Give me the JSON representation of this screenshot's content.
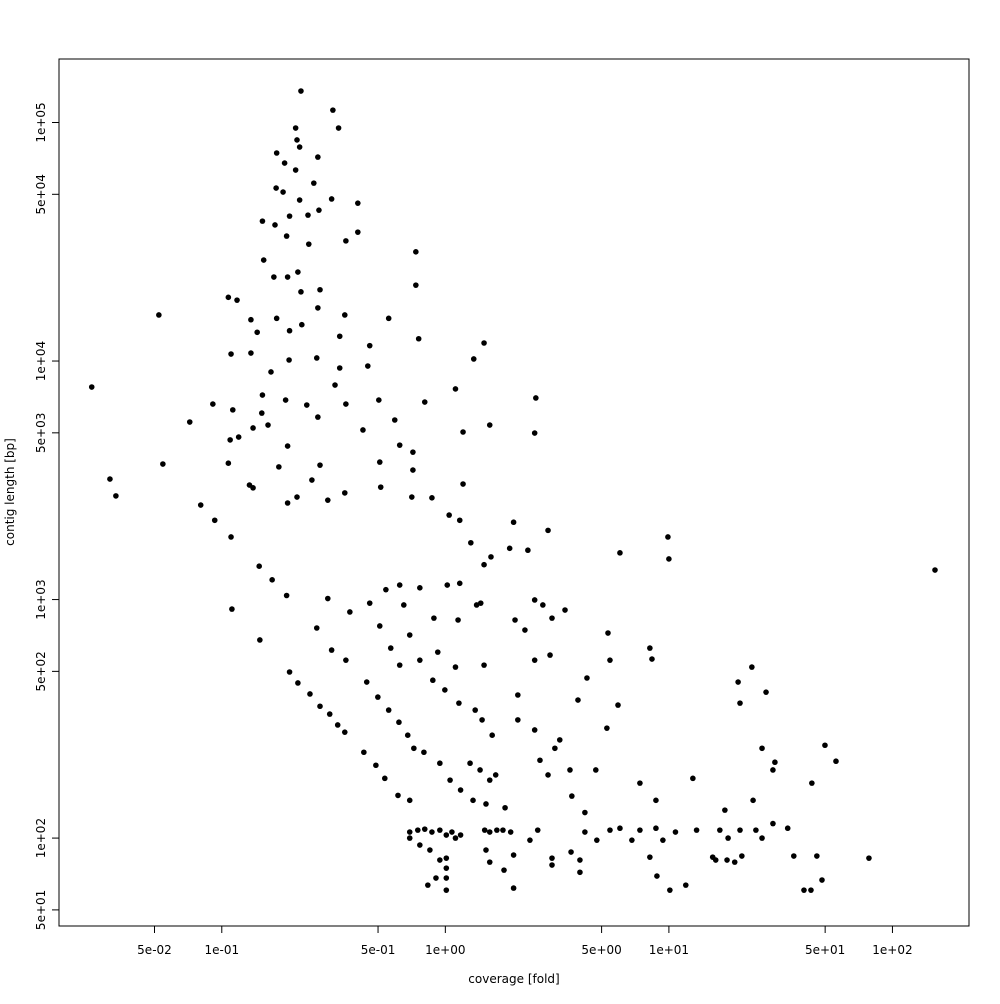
{
  "chart_data": {
    "type": "scatter",
    "xlabel": "coverage [fold]",
    "ylabel": "contig length [bp]",
    "xlog": true,
    "ylog": true,
    "color": "#000000",
    "xlim": [
      0.0187,
      220
    ],
    "ylim": [
      42.8,
      184600
    ],
    "xticks": [
      {
        "value": 0.05,
        "label": "5e-02"
      },
      {
        "value": 0.1,
        "label": "1e-01"
      },
      {
        "value": 0.5,
        "label": "5e-01"
      },
      {
        "value": 1,
        "label": "1e+00"
      },
      {
        "value": 5,
        "label": "5e+00"
      },
      {
        "value": 10,
        "label": "1e+01"
      },
      {
        "value": 50,
        "label": "5e+01"
      },
      {
        "value": 100,
        "label": "1e+02"
      }
    ],
    "yticks": [
      {
        "value": 50,
        "label": "5e+01"
      },
      {
        "value": 100,
        "label": "1e+02"
      },
      {
        "value": 500,
        "label": "5e+02"
      },
      {
        "value": 1000,
        "label": "1e+03"
      },
      {
        "value": 5000,
        "label": "5e+03"
      },
      {
        "value": 10000,
        "label": "1e+04"
      },
      {
        "value": 50000,
        "label": "5e+04"
      },
      {
        "value": 100000,
        "label": "1e+05"
      }
    ],
    "x": [
      0.226,
      0.314,
      0.333,
      0.214,
      0.217,
      0.223,
      0.176,
      0.269,
      0.191,
      0.214,
      0.258,
      0.175,
      0.188,
      0.31,
      0.223,
      0.152,
      0.201,
      0.243,
      0.173,
      0.272,
      0.406,
      0.195,
      0.245,
      0.359,
      0.406,
      0.154,
      0.219,
      0.197,
      0.171,
      0.275,
      0.226,
      0.107,
      0.117,
      0.0523,
      0.176,
      0.355,
      0.228,
      0.201,
      0.135,
      0.269,
      0.144,
      0.337,
      0.459,
      0.558,
      0.738,
      0.738,
      0.76,
      0.135,
      0.11,
      0.2,
      0.266,
      0.337,
      0.45,
      0.166,
      0.152,
      0.193,
      0.24,
      0.321,
      0.359,
      0.504,
      0.0262,
      0.0719,
      0.0912,
      0.112,
      0.151,
      0.161,
      0.197,
      0.269,
      0.809,
      1.11,
      1.34,
      1.49,
      2.54,
      2.51,
      1.2,
      1.58,
      0.428,
      0.594,
      0.625,
      0.716,
      0.109,
      0.119,
      0.138,
      0.0545,
      0.107,
      0.18,
      0.275,
      0.253,
      0.0316,
      0.0336,
      0.0805,
      0.093,
      0.11,
      0.133,
      0.138,
      0.197,
      0.217,
      0.298,
      0.355,
      0.509,
      0.716,
      0.708,
      0.514,
      0.871,
      1.04,
      1.16,
      1.2,
      1.3,
      1.49,
      1.6,
      2.02,
      1.94,
      2.34,
      2.88,
      2.51,
      3.0,
      2.73,
      3.43,
      6.04,
      9.9,
      10.0,
      155,
      0.147,
      0.168,
      0.195,
      0.298,
      0.374,
      0.459,
      0.542,
      0.625,
      0.652,
      0.769,
      1.02,
      1.16,
      1.38,
      1.44,
      1.14,
      0.889,
      0.148,
      0.111,
      0.266,
      0.31,
      0.359,
      0.509,
      0.693,
      0.57,
      0.625,
      0.925,
      1.11,
      1.49,
      2.05,
      2.27,
      2.51,
      2.94,
      5.34,
      5.45,
      8.22,
      8.4,
      4.3,
      3.92,
      5.92,
      20.4,
      23.5,
      20.8,
      27.2,
      0.201,
      0.219,
      0.248,
      0.275,
      0.304,
      0.33,
      0.355,
      0.445,
      0.499,
      0.558,
      0.62,
      0.679,
      0.723,
      0.769,
      0.879,
      0.995,
      1.15,
      1.36,
      1.46,
      1.62,
      2.11,
      2.11,
      2.51,
      2.65,
      3.09,
      3.25,
      2.88,
      3.61,
      4.71,
      5.28,
      7.42,
      8.75,
      12.8,
      26.1,
      29.8,
      29.2,
      49.9,
      55.9,
      43.6,
      23.8,
      0.432,
      0.489,
      0.536,
      0.614,
      0.693,
      0.802,
      0.945,
      1.05,
      1.17,
      1.29,
      1.43,
      1.58,
      1.68,
      1.85,
      1.33,
      1.52,
      0.693,
      0.753,
      0.809,
      0.871,
      0.945,
      1.01,
      1.07,
      0.693,
      0.769,
      0.853,
      0.945,
      1.01,
      1.01,
      1.01,
      1.01,
      0.908,
      0.835,
      1.11,
      1.17,
      1.5,
      1.58,
      1.7,
      1.81,
      1.96,
      1.52,
      1.58,
      1.83,
      2.02,
      2.02,
      2.59,
      3.0,
      3.0,
      3.65,
      4.0,
      4.0,
      4.21,
      4.76,
      5.45,
      6.04,
      6.83,
      7.42,
      8.22,
      8.84,
      10.1,
      9.4,
      10.7,
      11.9,
      13.3,
      15.7,
      16.2,
      16.9,
      18.2,
      19.7,
      21.2,
      18.4,
      20.8,
      24.5,
      26.1,
      29.2,
      34.0,
      36.2,
      43.2,
      40.2,
      45.9,
      48.4,
      78.5,
      2.39,
      4.21,
      3.68,
      8.75,
      17.8
    ],
    "values": [
      135500,
      112700,
      94800,
      94800,
      84500,
      78900,
      74500,
      71600,
      67600,
      63200,
      55700,
      53100,
      51100,
      47800,
      47300,
      38600,
      40500,
      40900,
      37200,
      42900,
      45900,
      33400,
      30900,
      31900,
      34700,
      26500,
      23600,
      22500,
      22500,
      19900,
      19500,
      18500,
      18000,
      15600,
      15100,
      15600,
      14200,
      13400,
      14900,
      16700,
      13200,
      12700,
      11600,
      15100,
      28700,
      20800,
      12400,
      10800,
      10700,
      10100,
      10300,
      9350,
      9530,
      9000,
      7200,
      6860,
      6540,
      7930,
      6600,
      6860,
      7780,
      5550,
      6600,
      6240,
      6050,
      5390,
      4400,
      5820,
      6730,
      7640,
      10200,
      11900,
      7000,
      4990,
      5040,
      5390,
      5140,
      5660,
      4440,
      4150,
      4670,
      4800,
      5240,
      3700,
      3730,
      3600,
      3660,
      3170,
      3200,
      2720,
      2490,
      2150,
      1830,
      3020,
      2940,
      2540,
      2690,
      2610,
      2800,
      3770,
      3490,
      2690,
      2960,
      2670,
      2260,
      2150,
      3050,
      1730,
      1400,
      1510,
      2110,
      1640,
      1610,
      1950,
      996,
      836,
      949,
      904,
      1570,
      1830,
      1480,
      1330,
      1380,
      1210,
      1040,
      1010,
      887,
      966,
      1100,
      1150,
      949,
      1120,
      1150,
      1170,
      949,
      966,
      821,
      836,
      677,
      912,
      760,
      614,
      557,
      775,
      710,
      626,
      531,
      602,
      521,
      531,
      821,
      745,
      557,
      585,
      724,
      557,
      626,
      563,
      469,
      379,
      361,
      451,
      521,
      368,
      409,
      497,
      447,
      402,
      357,
      331,
      298,
      278,
      451,
      390,
      344,
      306,
      270,
      238,
      557,
      459,
      418,
      368,
      344,
      313,
      270,
      398,
      313,
      284,
      212,
      238,
      258,
      184,
      193,
      193,
      289,
      170,
      144,
      178,
      238,
      208,
      193,
      245,
      210,
      170,
      144,
      229,
      202,
      178,
      151,
      144,
      229,
      206,
      175,
      159,
      206,
      193,
      175,
      184,
      134,
      144,
      139,
      106,
      108,
      109,
      106,
      108,
      103,
      106,
      100,
      93.5,
      89.1,
      80.9,
      82.4,
      74.8,
      68.0,
      60.5,
      68.0,
      63.5,
      100,
      103,
      108,
      106,
      108,
      108,
      106,
      89.1,
      79.3,
      73.4,
      84.9,
      61.7,
      108,
      82.4,
      77.1,
      87.4,
      80.9,
      71.9,
      106,
      98,
      108,
      110,
      98,
      108,
      83.2,
      69.3,
      60.5,
      98,
      106,
      63.5,
      108,
      83.2,
      80.9,
      108,
      80.9,
      79.3,
      84.1,
      100,
      108,
      108,
      100,
      115,
      110,
      84.1,
      60.5,
      60.5,
      84.1,
      66.7,
      82.4,
      98,
      128,
      150,
      110,
      131
    ]
  }
}
